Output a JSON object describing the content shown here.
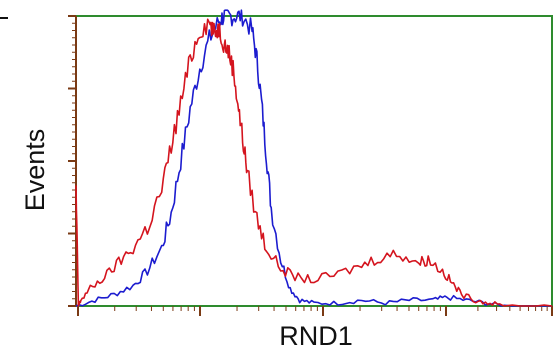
{
  "chart_data": {
    "type": "line",
    "title": "",
    "xlabel": "RND1",
    "ylabel": "Events",
    "grid": false,
    "legend": "none",
    "xlim": [
      0,
      1
    ],
    "ylim": [
      0,
      1
    ],
    "colors": {
      "frame": "#2e8b2e",
      "tick": "#7a3a14",
      "series_blue": "#1c1ccf",
      "series_red": "#d4141e",
      "text": "#111111"
    },
    "series": [
      {
        "color": "#1c1ccf",
        "x": [
          0.0,
          0.04,
          0.08,
          0.12,
          0.15,
          0.18,
          0.2,
          0.22,
          0.24,
          0.26,
          0.28,
          0.3,
          0.31,
          0.32,
          0.335,
          0.35,
          0.37,
          0.38,
          0.39,
          0.4,
          0.41,
          0.43,
          0.45,
          0.47,
          0.5,
          0.55,
          0.6,
          0.65,
          0.7,
          0.75,
          0.78,
          0.82,
          0.86,
          0.9,
          1.0
        ],
        "y": [
          0.0,
          0.02,
          0.04,
          0.07,
          0.12,
          0.2,
          0.32,
          0.5,
          0.68,
          0.82,
          0.92,
          0.98,
          1.0,
          1.0,
          1.0,
          1.0,
          0.95,
          0.85,
          0.7,
          0.52,
          0.34,
          0.16,
          0.06,
          0.02,
          0.01,
          0.01,
          0.02,
          0.01,
          0.02,
          0.02,
          0.03,
          0.02,
          0.01,
          0.0,
          0.0
        ]
      },
      {
        "color": "#d4141e",
        "x": [
          0.0,
          0.005,
          0.01,
          0.03,
          0.06,
          0.09,
          0.12,
          0.15,
          0.18,
          0.2,
          0.22,
          0.24,
          0.26,
          0.28,
          0.29,
          0.3,
          0.31,
          0.32,
          0.33,
          0.34,
          0.35,
          0.36,
          0.38,
          0.4,
          0.43,
          0.46,
          0.5,
          0.55,
          0.6,
          0.64,
          0.68,
          0.72,
          0.74,
          0.77,
          0.79,
          0.81,
          0.84,
          0.87,
          0.9,
          1.0
        ],
        "y": [
          0.4,
          0.0,
          0.02,
          0.06,
          0.1,
          0.15,
          0.2,
          0.27,
          0.4,
          0.55,
          0.7,
          0.85,
          0.95,
          0.98,
          0.94,
          0.96,
          0.91,
          0.88,
          0.82,
          0.7,
          0.58,
          0.46,
          0.3,
          0.2,
          0.13,
          0.1,
          0.09,
          0.11,
          0.14,
          0.17,
          0.18,
          0.15,
          0.16,
          0.12,
          0.08,
          0.04,
          0.02,
          0.01,
          0.0,
          0.0
        ]
      }
    ]
  }
}
